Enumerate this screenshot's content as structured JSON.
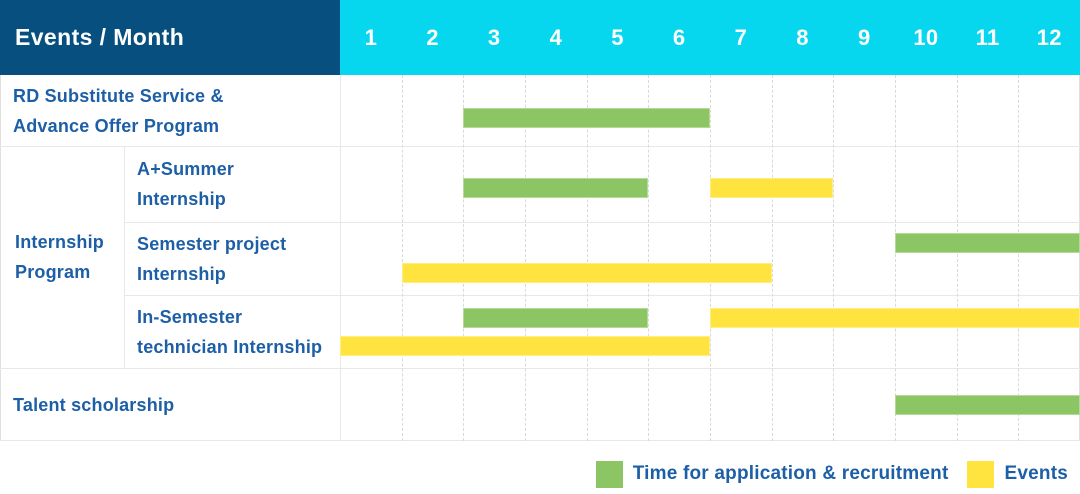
{
  "title_cell": "Events / Month",
  "months": [
    "1",
    "2",
    "3",
    "4",
    "5",
    "6",
    "7",
    "8",
    "9",
    "10",
    "11",
    "12"
  ],
  "colors": {
    "navy": "#064f7e",
    "cyan": "#06d7ee",
    "green": "#8cc563",
    "yellow": "#ffe33f",
    "label_blue": "#1d5fa6",
    "grid": "#e8e8e8",
    "grid_dashed": "#d9d9d9",
    "border": "#e0e0e0"
  },
  "row_labels": {
    "groups": [
      {
        "lines": [
          "RD Substitute Service &",
          "Advance Offer Program"
        ],
        "rows": [
          0,
          0
        ],
        "full_width": true
      },
      {
        "lines": [
          "Internship",
          "Program"
        ],
        "rows": [
          1,
          3
        ],
        "full_width": false
      },
      {
        "lines": [
          "Talent scholarship"
        ],
        "rows": [
          4,
          4
        ],
        "full_width": true
      }
    ],
    "sub_labels": [
      null,
      [
        "A+Summer",
        "Internship"
      ],
      [
        "Semester project",
        "Internship"
      ],
      [
        "In-Semester",
        "technician Internship"
      ],
      null
    ]
  },
  "legend": {
    "items": [
      {
        "swatch": "green",
        "label": "Time for application & recruitment"
      },
      {
        "swatch": "yellow",
        "label": "Events"
      }
    ]
  },
  "chart_data": {
    "type": "gantt",
    "title": "Events / Month",
    "x_axis": {
      "unit": "month",
      "ticks": [
        1,
        2,
        3,
        4,
        5,
        6,
        7,
        8,
        9,
        10,
        11,
        12
      ]
    },
    "legend": {
      "green": "Time for application & recruitment",
      "yellow": "Events"
    },
    "rows": [
      {
        "event": "RD Substitute Service & Advance Offer Program",
        "group": null,
        "spans": [
          {
            "kind": "application_recruitment",
            "color": "green",
            "months": [
              3,
              6
            ],
            "lane": 0
          }
        ]
      },
      {
        "event": "A+Summer Internship",
        "group": "Internship Program",
        "spans": [
          {
            "kind": "application_recruitment",
            "color": "green",
            "months": [
              3,
              5
            ],
            "lane": 0
          },
          {
            "kind": "events",
            "color": "yellow",
            "months": [
              7,
              8
            ],
            "lane": 0
          }
        ]
      },
      {
        "event": "Semester project Internship",
        "group": "Internship Program",
        "spans": [
          {
            "kind": "application_recruitment",
            "color": "green",
            "months": [
              10,
              12
            ],
            "lane": 0
          },
          {
            "kind": "events",
            "color": "yellow",
            "months": [
              2,
              7
            ],
            "lane": 1
          }
        ]
      },
      {
        "event": "In-Semester technician Internship",
        "group": "Internship Program",
        "spans": [
          {
            "kind": "application_recruitment",
            "color": "green",
            "months": [
              3,
              5
            ],
            "lane": 0
          },
          {
            "kind": "events",
            "color": "yellow",
            "months": [
              7,
              12
            ],
            "lane": 0
          },
          {
            "kind": "events",
            "color": "yellow",
            "months": [
              1,
              6
            ],
            "lane": 1
          }
        ]
      },
      {
        "event": "Talent scholarship",
        "group": null,
        "spans": [
          {
            "kind": "application_recruitment",
            "color": "green",
            "months": [
              10,
              12
            ],
            "lane": 0
          }
        ]
      }
    ]
  }
}
